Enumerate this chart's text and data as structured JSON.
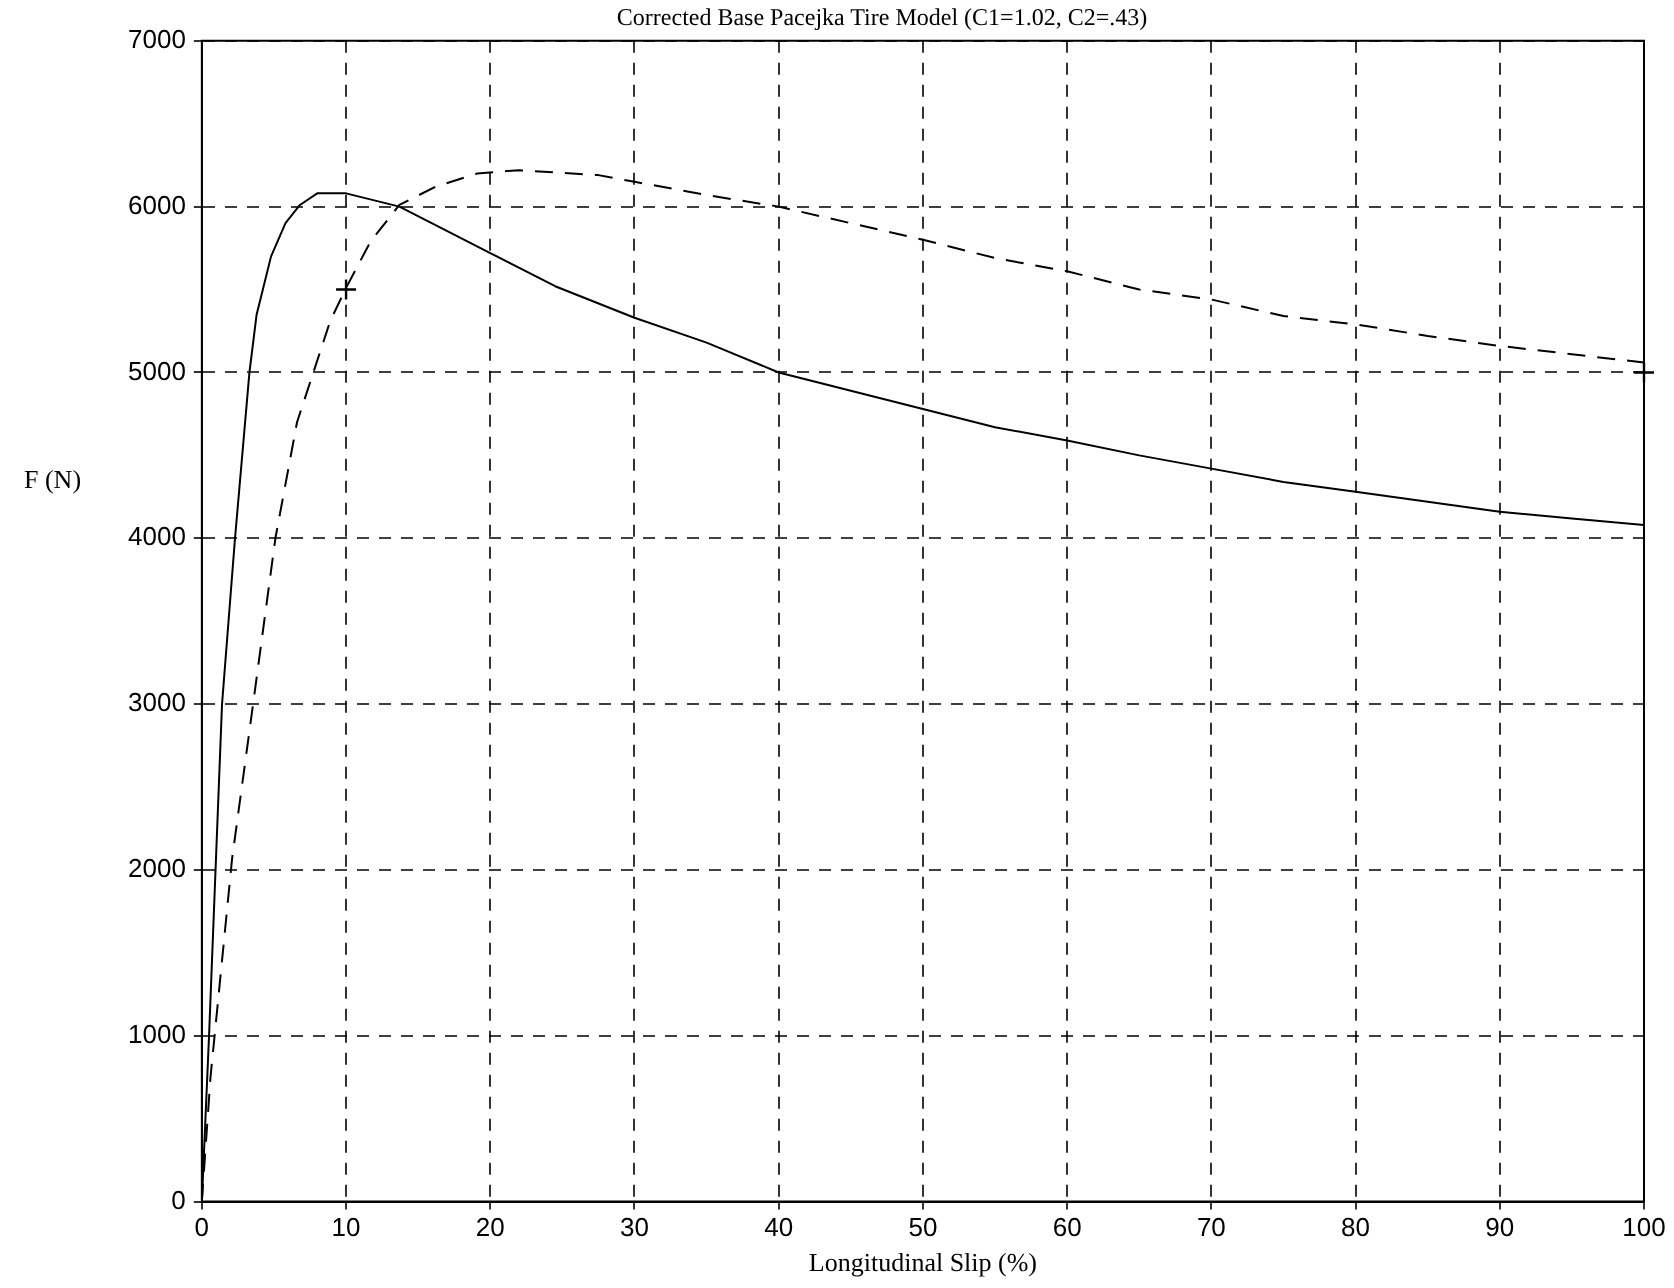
{
  "chart_data": {
    "type": "line",
    "title": "Corrected Base Pacejka Tire Model (C1=1.02, C2=.43)",
    "xlabel": "Longitudinal Slip (%)",
    "ylabel": "F (N)",
    "series": [
      {
        "color": "#000000",
        "line_style": "solid",
        "x": [
          0,
          0.5,
          1.4,
          2.3,
          3.3,
          3.8,
          4.8,
          5.8,
          6.8,
          8,
          10,
          13.7,
          20,
          24.5,
          30,
          35,
          40,
          45,
          50,
          55,
          60,
          65,
          70,
          75,
          80,
          85,
          90,
          95,
          100
        ],
        "values": [
          0,
          1000,
          3000,
          4000,
          5000,
          5350,
          5700,
          5900,
          6010,
          6080,
          6080,
          6000,
          5720,
          5520,
          5330,
          5180,
          5000,
          4890,
          4780,
          4670,
          4590,
          4500,
          4420,
          4340,
          4280,
          4220,
          4160,
          4120,
          4080
        ]
      },
      {
        "color": "#000000",
        "line_style": "dashed",
        "x": [
          0,
          0.6,
          2.1,
          3.6,
          5.1,
          6.6,
          8.9,
          10,
          11.7,
          13.7,
          16.2,
          19.1,
          22,
          27.5,
          30,
          35,
          40,
          45,
          50,
          55,
          60,
          65,
          70,
          75,
          80,
          85,
          90,
          95,
          100
        ],
        "values": [
          0,
          750,
          2070,
          3030,
          4000,
          4700,
          5310,
          5510,
          5790,
          6010,
          6120,
          6200,
          6220,
          6190,
          6150,
          6070,
          6000,
          5900,
          5800,
          5690,
          5610,
          5500,
          5440,
          5340,
          5290,
          5220,
          5160,
          5110,
          5060
        ]
      },
      {
        "type": "scatter",
        "color": "#000000",
        "marker": "cross",
        "x": [
          10,
          100
        ],
        "values": [
          5500,
          5000
        ]
      }
    ],
    "xlim": [
      0,
      100
    ],
    "xticks": [
      0,
      10,
      20,
      30,
      40,
      50,
      60,
      70,
      80,
      90,
      100
    ],
    "ylim": [
      0,
      7000
    ],
    "yticks": [
      0,
      1000,
      2000,
      3000,
      4000,
      5000,
      6000,
      7000
    ],
    "grid": true,
    "legend": false
  }
}
